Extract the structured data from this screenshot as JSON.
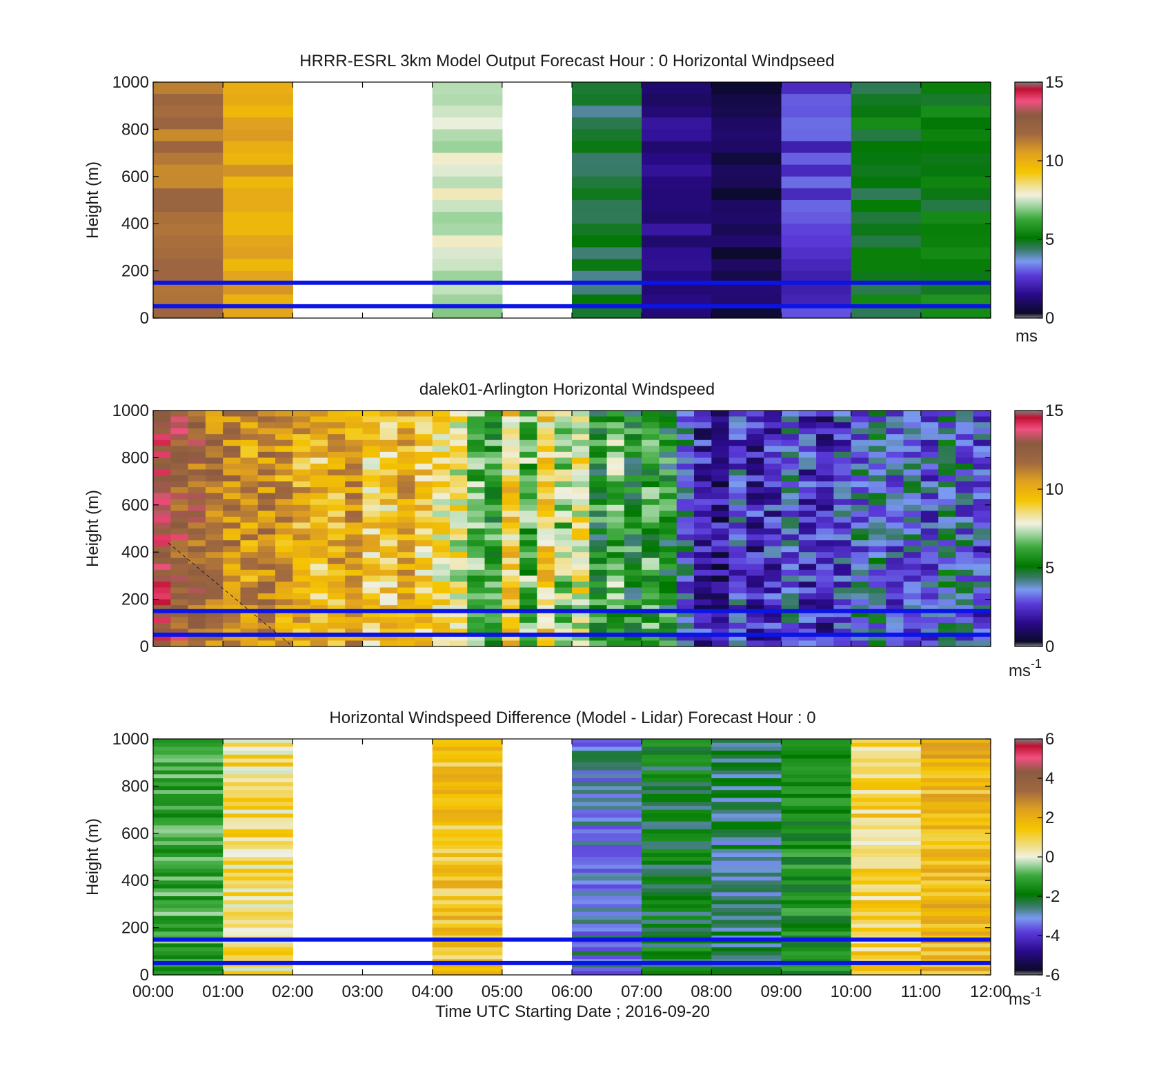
{
  "figure": {
    "xlabel": "Time UTC  Starting Date ; 2016-09-20",
    "x_ticks": [
      "00:00",
      "01:00",
      "02:00",
      "03:00",
      "04:00",
      "05:00",
      "06:00",
      "07:00",
      "08:00",
      "09:00",
      "10:00",
      "11:00",
      "12:00"
    ]
  },
  "chart_data": [
    {
      "type": "heatmap",
      "title": "HRRR-ESRL 3km Model Output   Forecast Hour : 0 Horizontal Windpseed",
      "xlabel": "",
      "ylabel": "Height (m)",
      "y_ticks": [
        "0",
        "200",
        "400",
        "600",
        "800",
        "1000"
      ],
      "ylim": [
        0,
        1000
      ],
      "xlim": [
        "00:00",
        "12:00"
      ],
      "colorbar": {
        "min": 0,
        "max": 15,
        "ticks": [
          "0",
          "5",
          "10",
          "15"
        ],
        "unit": "ms",
        "unit_sup": ""
      },
      "reference_lines_m": [
        150,
        50
      ],
      "reference_line_color": "#0a14e6",
      "hourly_mean_speed": [
        11.5,
        10.2,
        null,
        null,
        7.5,
        null,
        4.5,
        1.4,
        0.6,
        2.6,
        5.0,
        5.2
      ],
      "missing_hours": [
        "02:00",
        "03:00",
        "05:00"
      ]
    },
    {
      "type": "heatmap",
      "title": "dalek01-Arlington  Horizontal Windspeed",
      "xlabel": "",
      "ylabel": "Height (m)",
      "y_ticks": [
        "0",
        "200",
        "400",
        "600",
        "800",
        "1000"
      ],
      "ylim": [
        0,
        1000
      ],
      "xlim": [
        "00:00",
        "12:00"
      ],
      "colorbar": {
        "min": 0,
        "max": 15,
        "ticks": [
          "0",
          "5",
          "10",
          "15"
        ],
        "unit": "ms",
        "unit_sup": "-1"
      },
      "reference_lines_m": [
        150,
        50
      ],
      "reference_line_color": "#0a14e6",
      "column_mean_speed": [
        13.5,
        12.5,
        12.0,
        11.5,
        11.0,
        10.5,
        11.0,
        10.5,
        10.0,
        9.5,
        10.0,
        10.5,
        9.0,
        9.0,
        10.0,
        9.0,
        8.5,
        8.0,
        6.5,
        6.0,
        9.0,
        6.5,
        9.0,
        7.0,
        8.0,
        5.5,
        6.5,
        5.5,
        6.0,
        5.5,
        3.5,
        2.0,
        1.5,
        3.0,
        2.0,
        2.5,
        3.5,
        2.5,
        2.0,
        3.0,
        3.5,
        4.0,
        3.0,
        3.5,
        3.0,
        4.0,
        3.5,
        3.0
      ]
    },
    {
      "type": "heatmap",
      "title": "Horizontal Windspeed Difference (Model - Lidar) Forecast Hour : 0",
      "xlabel": "Time UTC  Starting Date ; 2016-09-20",
      "ylabel": "Height (m)",
      "y_ticks": [
        "0",
        "200",
        "400",
        "600",
        "800",
        "1000"
      ],
      "ylim": [
        0,
        1000
      ],
      "xlim": [
        "00:00",
        "12:00"
      ],
      "colorbar": {
        "min": -6,
        "max": 6,
        "ticks": [
          "-6",
          "-4",
          "-2",
          "0",
          "2",
          "4",
          "6"
        ],
        "unit": "ms",
        "unit_sup": "-1"
      },
      "reference_lines_m": [
        150,
        50
      ],
      "reference_line_color": "#0a14e6",
      "hourly_mean_difference": [
        -1.0,
        0.8,
        null,
        null,
        1.5,
        null,
        -3.0,
        -2.0,
        -2.5,
        -1.5,
        1.0,
        1.8
      ],
      "missing_hours": [
        "02:00",
        "03:00",
        "05:00"
      ]
    }
  ]
}
